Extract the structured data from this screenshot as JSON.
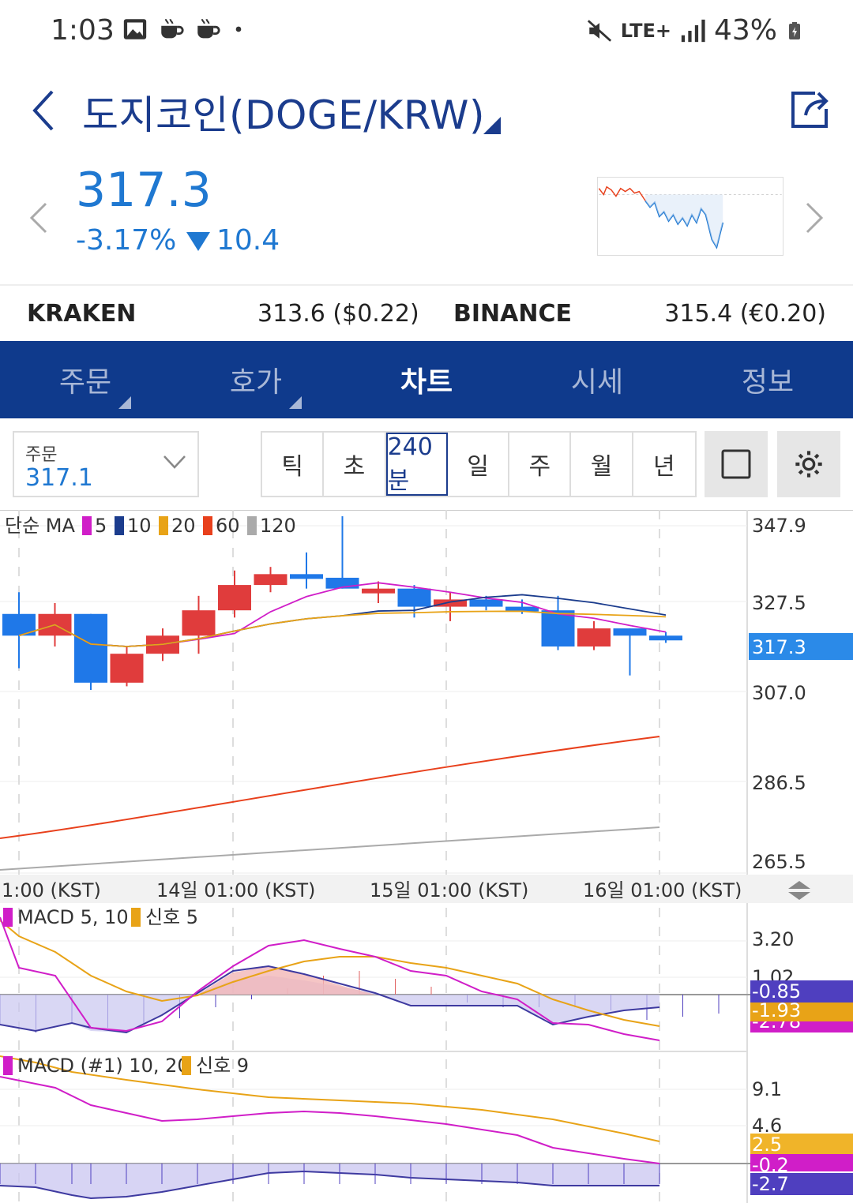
{
  "status": {
    "time": "1:03",
    "network": "LTE+",
    "battery": "43%",
    "icons": [
      "image-icon",
      "coffee-icon",
      "coffee-icon",
      "dot-icon",
      "mute-icon",
      "signal-icon",
      "battery-icon"
    ]
  },
  "header": {
    "title": "도지코인(DOGE/KRW)"
  },
  "quote": {
    "price": "317.3",
    "change_pct": "-3.17%",
    "change_abs": "10.4",
    "color": "#1f78d1"
  },
  "exchanges": {
    "kraken_name": "KRAKEN",
    "kraken_price": "313.6 ($0.22)",
    "binance_name": "BINANCE",
    "binance_price": "315.4 (€0.20)"
  },
  "tabs": {
    "order": "주문",
    "orderbook": "호가",
    "chart": "차트",
    "market": "시세",
    "info": "정보",
    "active": "차트",
    "tab_bg": "#0f3a8c"
  },
  "controls": {
    "order_label": "주문",
    "order_value": "317.1",
    "periods": [
      "틱",
      "초",
      "240분",
      "일",
      "주",
      "월",
      "년"
    ],
    "active_period": "240분"
  },
  "chart_data": [
    {
      "type": "candlestick",
      "legend": {
        "prefix": "단순 MA",
        "items": [
          {
            "label": "5",
            "color": "#d01ec8"
          },
          {
            "label": "10",
            "color": "#1b3c8d"
          },
          {
            "label": "20",
            "color": "#e8a317"
          },
          {
            "label": "60",
            "color": "#e8401c"
          },
          {
            "label": "120",
            "color": "#aaaaaa"
          }
        ]
      },
      "y_ticks": [
        "347.9",
        "327.5",
        "307.0",
        "286.5",
        "265.5"
      ],
      "current_price_label": "317.3",
      "x_ticks": [
        "1:00 (KST)",
        "14일 01:00 (KST)",
        "15일 01:00 (KST)",
        "16일 01:00 (KST)"
      ],
      "candles": [
        {
          "o": 322,
          "c": 316,
          "h": 328,
          "l": 307
        },
        {
          "o": 316,
          "c": 322,
          "h": 325,
          "l": 313
        },
        {
          "o": 322,
          "c": 303,
          "h": 322,
          "l": 301
        },
        {
          "o": 303,
          "c": 311,
          "h": 313,
          "l": 302
        },
        {
          "o": 311,
          "c": 316,
          "h": 318,
          "l": 309
        },
        {
          "o": 316,
          "c": 323,
          "h": 327,
          "l": 311
        },
        {
          "o": 323,
          "c": 330,
          "h": 334,
          "l": 321
        },
        {
          "o": 330,
          "c": 333,
          "h": 335,
          "l": 328
        },
        {
          "o": 333,
          "c": 332,
          "h": 339,
          "l": 329
        },
        {
          "o": 332,
          "c": 329,
          "h": 349,
          "l": 329
        },
        {
          "o": 329,
          "c": 329,
          "h": 331,
          "l": 325
        },
        {
          "o": 329,
          "c": 324,
          "h": 330,
          "l": 321
        },
        {
          "o": 324,
          "c": 326,
          "h": 328,
          "l": 320
        },
        {
          "o": 326,
          "c": 324,
          "h": 327,
          "l": 323
        },
        {
          "o": 324,
          "c": 323,
          "h": 326,
          "l": 322
        },
        {
          "o": 323,
          "c": 313,
          "h": 327,
          "l": 312
        },
        {
          "o": 313,
          "c": 318,
          "h": 320,
          "l": 312
        },
        {
          "o": 318,
          "c": 316,
          "h": 318,
          "l": 305
        },
        {
          "o": 316,
          "c": 315,
          "h": 317,
          "l": 314
        }
      ]
    },
    {
      "type": "line",
      "legend": {
        "items": [
          {
            "label": "MACD 5, 10",
            "color": "#d01ec8"
          },
          {
            "label": "신호 5",
            "color": "#e8a317"
          }
        ]
      },
      "y_ticks": [
        "3.20",
        "1.02"
      ],
      "value_labels": [
        {
          "text": "-0.85",
          "color": "#4f3fbf"
        },
        {
          "text": "-1.93",
          "color": "#e8a317"
        },
        {
          "text": "-2.78",
          "color": "#d01ec8"
        }
      ]
    },
    {
      "type": "line",
      "legend": {
        "items": [
          {
            "label": "MACD (#1) 10, 20",
            "color": "#d01ec8"
          },
          {
            "label": "신호 9",
            "color": "#e8a317"
          }
        ]
      },
      "y_ticks": [
        "9.1",
        "4.6"
      ],
      "value_labels": [
        {
          "text": "2.5",
          "color": "#f0b429"
        },
        {
          "text": "-0.2",
          "color": "#d01ec8"
        },
        {
          "text": "-2.7",
          "color": "#4f3fbf"
        }
      ]
    }
  ]
}
